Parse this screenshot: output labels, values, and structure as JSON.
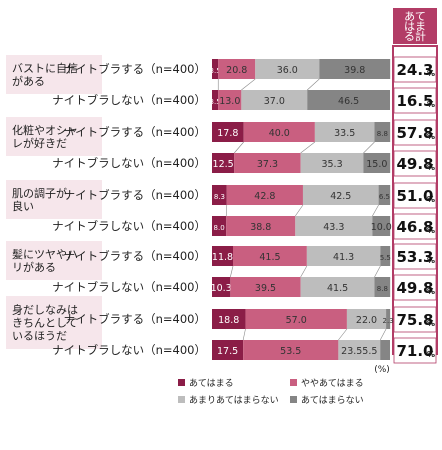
{
  "chart_data": {
    "type": "bar",
    "orientation": "horizontal",
    "stacked": true,
    "xlim": [
      0,
      100
    ],
    "unit": "(%)",
    "total_header": [
      "あて",
      "はま",
      "る計"
    ],
    "total_suffix": "%",
    "legend_position": "bottom",
    "series": [
      {
        "name": "あてはまる",
        "color": "#8b1d47"
      },
      {
        "name": "ややあてはまる",
        "color": "#c95f80"
      },
      {
        "name": "あまりあてはまらない",
        "color": "#bdbdbd"
      },
      {
        "name": "あてはまらない",
        "color": "#858585"
      }
    ],
    "groups": [
      {
        "label": [
          "バストに自信",
          "がある"
        ],
        "rows": [
          {
            "label": "ナイトブラする（n=400）",
            "values": [
              3.5,
              20.8,
              36.0,
              39.8
            ],
            "labels": [
              "3.5",
              "20.8",
              "36.0",
              "39.8"
            ],
            "total": "24.3"
          },
          {
            "label": "ナイトブラしない（n=400）",
            "values": [
              3.5,
              13.0,
              37.0,
              46.5
            ],
            "labels": [
              "3.5",
              "13.0",
              "37.0",
              "46.5"
            ],
            "total": "16.5"
          }
        ]
      },
      {
        "label": [
          "化粧やオシャ",
          "レが好きだ"
        ],
        "rows": [
          {
            "label": "ナイトブラする（n=400）",
            "values": [
              17.8,
              40.0,
              33.5,
              8.8
            ],
            "labels": [
              "17.8",
              "40.0",
              "33.5",
              "8.8"
            ],
            "total": "57.8"
          },
          {
            "label": "ナイトブラしない（n=400）",
            "values": [
              12.5,
              37.3,
              35.3,
              15.0
            ],
            "labels": [
              "12.5",
              "37.3",
              "35.3",
              "15.0"
            ],
            "total": "49.8"
          }
        ]
      },
      {
        "label": [
          "肌の調子が",
          "良い"
        ],
        "rows": [
          {
            "label": "ナイトブラする（n=400）",
            "values": [
              8.3,
              42.8,
              42.5,
              6.5
            ],
            "labels": [
              "8.3",
              "42.8",
              "42.5",
              "6.5"
            ],
            "total": "51.0"
          },
          {
            "label": "ナイトブラしない（n=400）",
            "values": [
              8.0,
              38.8,
              43.3,
              10.0
            ],
            "labels": [
              "8.0",
              "38.8",
              "43.3",
              "10.0"
            ],
            "total": "46.8"
          }
        ]
      },
      {
        "label": [
          "髪にツヤやハ",
          "リがある"
        ],
        "rows": [
          {
            "label": "ナイトブラする（n=400）",
            "values": [
              11.8,
              41.5,
              41.3,
              5.5
            ],
            "labels": [
              "11.8",
              "41.5",
              "41.3",
              "5.5"
            ],
            "total": "53.3"
          },
          {
            "label": "ナイトブラしない（n=400）",
            "values": [
              10.3,
              39.5,
              41.5,
              8.8
            ],
            "labels": [
              "10.3",
              "39.5",
              "41.5",
              "8.8"
            ],
            "total": "49.8"
          }
        ]
      },
      {
        "label": [
          "身だしなみは",
          "きちんとして",
          "いるほうだ"
        ],
        "rows": [
          {
            "label": "ナイトブラする（n=400）",
            "values": [
              18.8,
              57.0,
              22.0,
              2.3
            ],
            "labels": [
              "18.8",
              "57.0",
              "22.0",
              "2.3"
            ],
            "total": "75.8"
          },
          {
            "label": "ナイトブラしない（n=400）",
            "values": [
              17.5,
              53.5,
              23.5,
              5.5
            ],
            "labels": [
              "17.5",
              "53.5",
              "23.55.5",
              ""
            ],
            "total": "71.0"
          }
        ]
      }
    ]
  }
}
